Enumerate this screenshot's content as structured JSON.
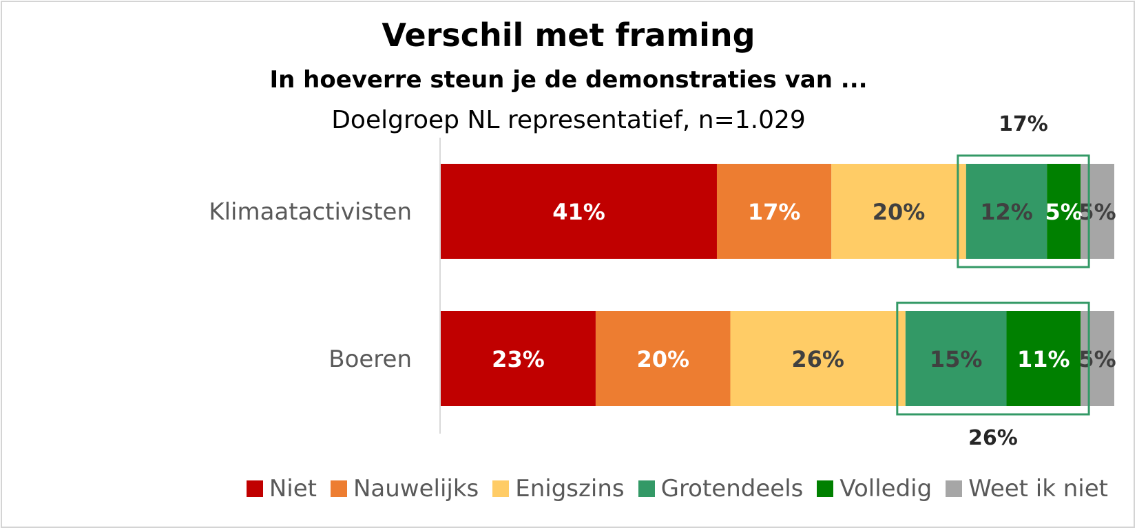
{
  "chart_data": {
    "type": "bar",
    "orientation": "horizontal-stacked",
    "title": "Verschil met framing",
    "subtitle": "In hoeverre steun je de demonstraties van ...",
    "note": "Doelgroep NL representatief, n=1.029",
    "categories": [
      "Klimaatactivisten",
      "Boeren"
    ],
    "series": [
      {
        "name": "Niet",
        "color": "#c00000",
        "label_color": "#ffffff",
        "values": [
          41,
          23
        ]
      },
      {
        "name": "Nauwelijks",
        "color": "#ed7d31",
        "label_color": "#ffffff",
        "values": [
          17,
          20
        ]
      },
      {
        "name": "Enigszins",
        "color": "#ffcc66",
        "label_color": "#404040",
        "values": [
          20,
          26
        ]
      },
      {
        "name": "Grotendeels",
        "color": "#339966",
        "label_color": "#404040",
        "values": [
          12,
          15
        ]
      },
      {
        "name": "Volledig",
        "color": "#008000",
        "label_color": "#ffffff",
        "values": [
          5,
          11
        ]
      },
      {
        "name": "Weet ik niet",
        "color": "#a6a6a6",
        "label_color": "#404040",
        "values": [
          5,
          5
        ]
      }
    ],
    "value_labels": [
      [
        "41%",
        "17%",
        "20%",
        "12%",
        "5%",
        "5%"
      ],
      [
        "23%",
        "20%",
        "26%",
        "15%",
        "11%",
        "5%"
      ]
    ],
    "highlight": {
      "series": [
        "Grotendeels",
        "Volledig"
      ],
      "color": "#339966",
      "totals": [
        "17%",
        "26%"
      ]
    },
    "legend_position": "bottom-right",
    "xlim": [
      0,
      100
    ]
  }
}
